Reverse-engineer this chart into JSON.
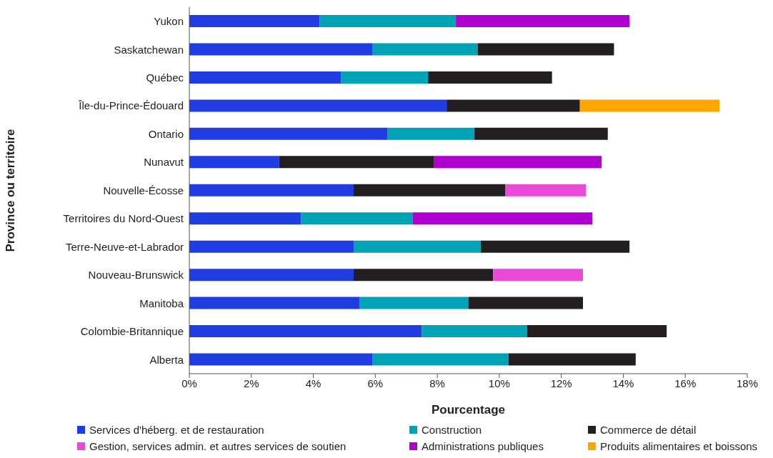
{
  "chart_data": {
    "type": "bar",
    "orientation": "horizontal",
    "stacked": true,
    "xlabel": "Pourcentage",
    "ylabel": "Province ou territoire",
    "categories": [
      "Yukon",
      "Saskatchewan",
      "Québec",
      "Île-du-Prince-Édouard",
      "Ontario",
      "Nunavut",
      "Nouvelle-Écosse",
      "Territoires du Nord-Ouest",
      "Terre-Neuve-et-Labrador",
      "Nouveau-Brunswick",
      "Manitoba",
      "Colombie-Britannique",
      "Alberta"
    ],
    "series": [
      {
        "name": "Services d'héberg. et de restauration",
        "color": "#1f3de0",
        "values": [
          4.2,
          5.9,
          4.9,
          8.3,
          6.4,
          2.9,
          5.3,
          3.6,
          5.3,
          5.3,
          5.5,
          7.5,
          5.9
        ]
      },
      {
        "name": "Construction",
        "color": "#00a3b5",
        "values": [
          4.4,
          3.4,
          2.8,
          null,
          2.8,
          null,
          null,
          3.6,
          4.1,
          null,
          3.5,
          3.4,
          4.4
        ]
      },
      {
        "name": "Commerce de détail",
        "color": "#231f20",
        "values": [
          null,
          4.4,
          4.0,
          4.3,
          4.3,
          5.0,
          4.9,
          null,
          4.8,
          4.5,
          3.7,
          4.5,
          4.1
        ]
      },
      {
        "name": "Gestion, services admin. et autres services de soutien",
        "color": "#e84bd8",
        "values": [
          null,
          null,
          null,
          null,
          null,
          null,
          2.6,
          null,
          null,
          2.9,
          null,
          null,
          null
        ]
      },
      {
        "name": "Administrations publiques",
        "color": "#b000d0",
        "values": [
          5.6,
          null,
          null,
          null,
          null,
          5.4,
          null,
          5.8,
          null,
          null,
          null,
          null,
          null
        ]
      },
      {
        "name": "Produits alimentaires et boissons",
        "color": "#ffa500",
        "values": [
          null,
          null,
          null,
          4.5,
          null,
          null,
          null,
          null,
          null,
          null,
          null,
          null,
          null
        ]
      }
    ],
    "xlim": [
      0,
      18
    ],
    "xticks": [
      {
        "value": 0,
        "label": "0%"
      },
      {
        "value": 2,
        "label": "2%"
      },
      {
        "value": 4,
        "label": "4%"
      },
      {
        "value": 6,
        "label": "6%"
      },
      {
        "value": 8,
        "label": "8%"
      },
      {
        "value": 10,
        "label": "10%"
      },
      {
        "value": 12,
        "label": "12%"
      },
      {
        "value": 14,
        "label": "14%"
      },
      {
        "value": 16,
        "label": "16%"
      },
      {
        "value": 18,
        "label": "18%"
      }
    ],
    "legend": "bottom"
  }
}
